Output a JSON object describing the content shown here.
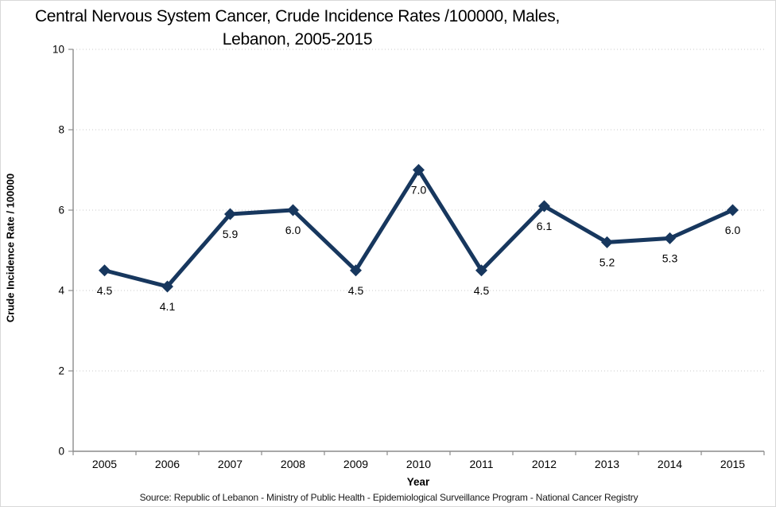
{
  "title": {
    "line1": "Central Nervous System Cancer, Crude Incidence Rates /100000, Males,",
    "line2": "Lebanon, 2005-2015"
  },
  "source": "Source: Republic of Lebanon - Ministry of Public Health - Epidemiological Surveillance Program - National Cancer Registry",
  "chart_data": {
    "type": "line",
    "title": "Central Nervous System Cancer, Crude Incidence Rates /100000, Males, Lebanon, 2005-2015",
    "categories": [
      "2005",
      "2006",
      "2007",
      "2008",
      "2009",
      "2010",
      "2011",
      "2012",
      "2013",
      "2014",
      "2015"
    ],
    "values": [
      4.5,
      4.1,
      5.9,
      6.0,
      4.5,
      7.0,
      4.5,
      6.1,
      5.2,
      5.3,
      6.0
    ],
    "data_labels": [
      "4.5",
      "4.1",
      "5.9",
      "6.0",
      "4.5",
      "7.0",
      "4.5",
      "6.1",
      "5.2",
      "5.3",
      "6.0"
    ],
    "xlabel": "Year",
    "ylabel": "Crude Incidence Rate / 100000",
    "ylim": [
      0,
      10
    ],
    "y_ticks": [
      0,
      2,
      4,
      6,
      8,
      10
    ],
    "y_tick_labels": [
      "0",
      "2",
      "4",
      "6",
      "8",
      "10"
    ],
    "grid": true,
    "legend": "none",
    "colors": {
      "line": "#17375E",
      "marker": "#17375E",
      "gridline": "#c9c9c9",
      "axis": "#8c8c8c",
      "text": "#000000"
    }
  }
}
